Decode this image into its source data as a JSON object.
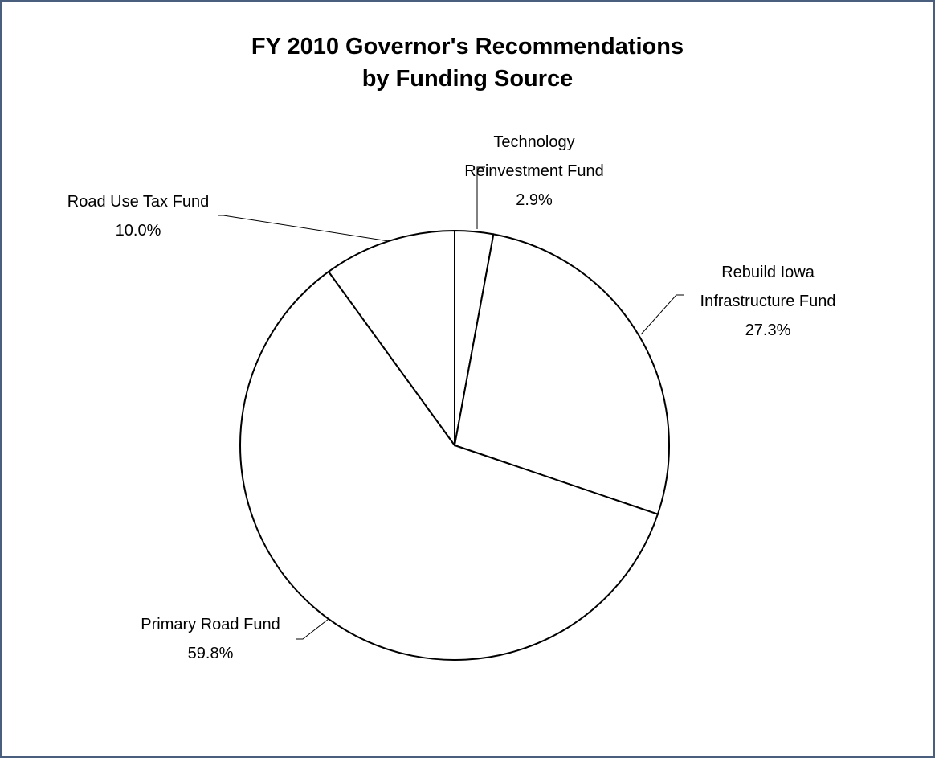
{
  "chart_data": {
    "type": "pie",
    "title": [
      "FY 2010 Governor's Recommendations",
      "by Funding Source"
    ],
    "slices": [
      {
        "name": [
          "Technology",
          "Reinvestment Fund"
        ],
        "value": 2.9,
        "label": "2.9%"
      },
      {
        "name": [
          "Rebuild Iowa",
          "Infrastructure Fund"
        ],
        "value": 27.3,
        "label": "27.3%"
      },
      {
        "name": [
          "Primary Road Fund"
        ],
        "value": 59.8,
        "label": "59.8%"
      },
      {
        "name": [
          "Road Use Tax Fund"
        ],
        "value": 10.0,
        "label": "10.0%"
      }
    ],
    "start": "12 o'clock",
    "direction": "clockwise",
    "fill": "#ffffff",
    "stroke": "#000000",
    "legend": "none",
    "labels": "outside, with leader lines"
  }
}
